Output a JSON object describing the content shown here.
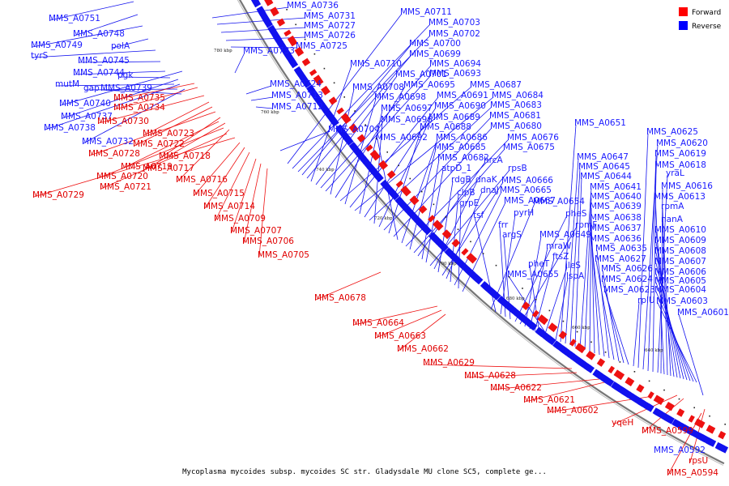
{
  "caption": "Mycoplasma mycoides subsp. mycoides SC str. Gladysdale MU clone SC5, complete ge...",
  "legend": [
    {
      "label": "Forward",
      "color": "#ff0000"
    },
    {
      "label": "Reverse",
      "color": "#0000ff"
    }
  ],
  "colors": {
    "forward": "#ee1111",
    "reverse": "#1111ee",
    "backbone": "#888888"
  },
  "ticks": [
    "780 kbp",
    "760 kbp",
    "740 kbp",
    "720 kbp",
    "700 kbp",
    "680 kbp",
    "660 kbp",
    "640 kbp"
  ],
  "blue_labels": [
    "MMS_A0751",
    "MMS_A0748",
    "MMS_A0749",
    "polA",
    "tyrS",
    "MMS_A0745",
    "MMS_A0744",
    "pgk",
    "mutM",
    "gap",
    "MMS_A0739",
    "MMS_A0740",
    "MMS_A0737",
    "MMS_A0738",
    "MMS_A0732",
    "MMS_A0736",
    "MMS_A0731",
    "MMS_A0727",
    "MMS_A0726",
    "MMS_A0725",
    "MMS_A0733",
    "MMS_A0724",
    "MMS_A0713",
    "MMS_A0712",
    "MMS_A0704",
    "MMS_A0711",
    "MMS_A0703",
    "MMS_A0702",
    "MMS_A0700",
    "MMS_A0699",
    "MMS_A0710",
    "MMS_A0701",
    "MMS_A0694",
    "MMS_A0693",
    "MMS_A0708",
    "MMS_A0695",
    "MMS_A0687",
    "MMS_A0698",
    "MMS_A0691",
    "MMS_A0684",
    "MMS_A0697",
    "MMS_A0690",
    "MMS_A0683",
    "MMS_A0696",
    "MMS_A0689",
    "MMS_A0681",
    "MMS_A0688",
    "MMS_A0680",
    "MMS_A0692",
    "MMS_A0686",
    "MMS_A0676",
    "MMS_A0685",
    "MMS_A0675",
    "hrcA",
    "MMS_A0682",
    "atpD_1",
    "rpsB",
    "dnaK",
    "rdgB",
    "MMS_A0666",
    "dnaJ",
    "clpB",
    "MMS_A0665",
    "grpE",
    "MMS_A0667",
    "MMS_A0654",
    "tsf",
    "pyrH",
    "frr",
    "argS",
    "pheS",
    "rpmF",
    "MMS_A0649",
    "mraW",
    "ftsZ",
    "pheT",
    "ileS",
    "MMS_A0655",
    "lspA",
    "MMS_A0651",
    "MMS_A0647",
    "MMS_A0645",
    "MMS_A0644",
    "MMS_A0641",
    "MMS_A0640",
    "MMS_A0639",
    "MMS_A0638",
    "MMS_A0637",
    "MMS_A0636",
    "MMS_A0635",
    "MMS_A0627",
    "MMS_A0626",
    "MMS_A0624",
    "MMS_A0623",
    "rplU",
    "MMS_A0625",
    "MMS_A0620",
    "MMS_A0619",
    "MMS_A0618",
    "yraL",
    "MMS_A0616",
    "MMS_A0613",
    "rpmA",
    "nanA",
    "MMS_A0610",
    "MMS_A0609",
    "MMS_A0608",
    "MMS_A0607",
    "MMS_A0606",
    "MMS_A0605",
    "MMS_A0604",
    "MMS_A0603",
    "MMS_A0601",
    "MMS_A0592"
  ],
  "red_labels": [
    "MMS_A0735",
    "MMS_A0734",
    "MMS_A0730",
    "MMS_A0723",
    "MMS_A0722",
    "MMS_A0728",
    "MMS_A0718",
    "MMS_A0719",
    "MMS_A0717",
    "MMS_A0720",
    "MMS_A0716",
    "MMS_A0721",
    "MMS_A0729",
    "MMS_A0715",
    "MMS_A0714",
    "MMS_A0709",
    "MMS_A0707",
    "MMS_A0706",
    "MMS_A0705",
    "MMS_A0678",
    "MMS_A0664",
    "MMS_A0663",
    "MMS_A0662",
    "MMS_A0629",
    "MMS_A0628",
    "MMS_A0622",
    "MMS_A0621",
    "MMS_A0602",
    "yqeH",
    "MMS_A0599",
    "rpsU",
    "MMS_A0594"
  ]
}
